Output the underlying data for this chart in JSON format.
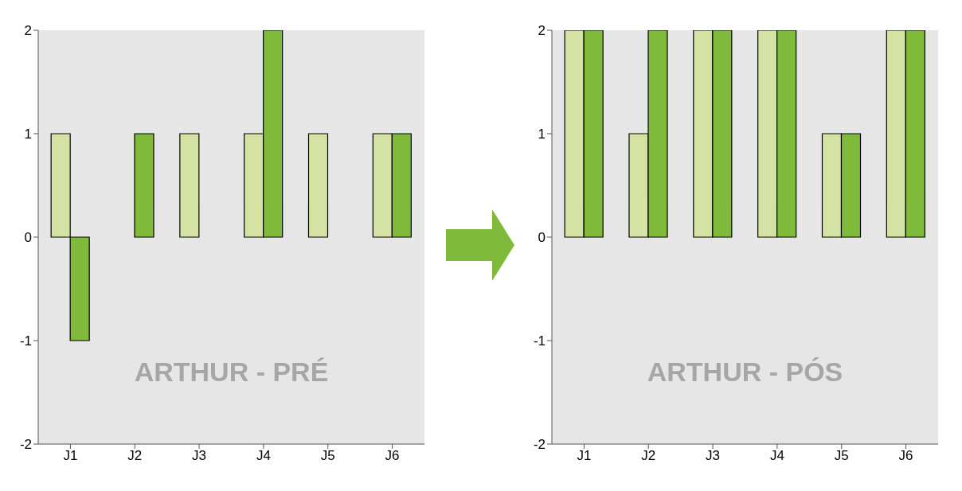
{
  "chart_data": [
    {
      "type": "bar",
      "categories": [
        "J1",
        "J2",
        "J3",
        "J4",
        "J5",
        "J6"
      ],
      "series": [
        {
          "color": "#d4e3a3",
          "values": [
            1,
            0,
            1,
            1,
            1,
            1
          ]
        },
        {
          "color": "#7fba3a",
          "values": [
            -1,
            1,
            0,
            2,
            0,
            1
          ]
        }
      ],
      "ylim": [
        -2,
        2
      ],
      "yticks": [
        -2,
        -1,
        0,
        1,
        2
      ],
      "grid": false,
      "annotations": [
        "ARTHUR - PRÉ"
      ]
    },
    {
      "type": "bar",
      "categories": [
        "J1",
        "J2",
        "J3",
        "J4",
        "J5",
        "J6"
      ],
      "series": [
        {
          "color": "#d4e3a3",
          "values": [
            2,
            1,
            2,
            2,
            1,
            2
          ]
        },
        {
          "color": "#7fba3a",
          "values": [
            2,
            2,
            2,
            2,
            1,
            2
          ]
        }
      ],
      "ylim": [
        -2,
        2
      ],
      "yticks": [
        -2,
        -1,
        0,
        1,
        2
      ],
      "grid": false,
      "annotations": [
        "ARTHUR - PÓS"
      ]
    }
  ]
}
